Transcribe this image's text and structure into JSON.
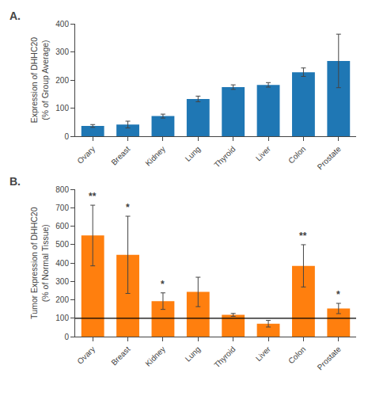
{
  "chart_data": [
    {
      "type": "bar",
      "title": "A.",
      "categories": [
        "Ovary",
        "Breast",
        "Kidney",
        "Lung",
        "Thyroid",
        "Liver",
        "Colon",
        "Prostate"
      ],
      "values": [
        37,
        42,
        72,
        133,
        175,
        183,
        228,
        268
      ],
      "errors": [
        5,
        12,
        7,
        10,
        8,
        8,
        15,
        95
      ],
      "ylabel": "Expression of DHHC20\n(% of Group Average)",
      "ylim": [
        0,
        400
      ],
      "yticks": [
        0,
        100,
        200,
        300,
        400
      ],
      "grid": false
    },
    {
      "type": "bar",
      "title": "B.",
      "categories": [
        "Ovary",
        "Breast",
        "Kidney",
        "Lung",
        "Thyroid",
        "Liver",
        "Colon",
        "Prostate"
      ],
      "values": [
        550,
        445,
        193,
        243,
        118,
        70,
        385,
        153
      ],
      "errors": [
        165,
        210,
        45,
        80,
        8,
        18,
        115,
        28
      ],
      "ylabel": "Tumor Expression of DHHC20\n(% of Normal Tissue)",
      "ylim": [
        0,
        800
      ],
      "yticks": [
        0,
        100,
        200,
        300,
        400,
        500,
        600,
        700,
        800
      ],
      "hline": 100,
      "annotations": [
        {
          "category": "Ovary",
          "text": "**"
        },
        {
          "category": "Breast",
          "text": "*"
        },
        {
          "category": "Kidney",
          "text": "*"
        },
        {
          "category": "Colon",
          "text": "**"
        },
        {
          "category": "Prostate",
          "text": "*"
        }
      ],
      "grid": false
    }
  ]
}
